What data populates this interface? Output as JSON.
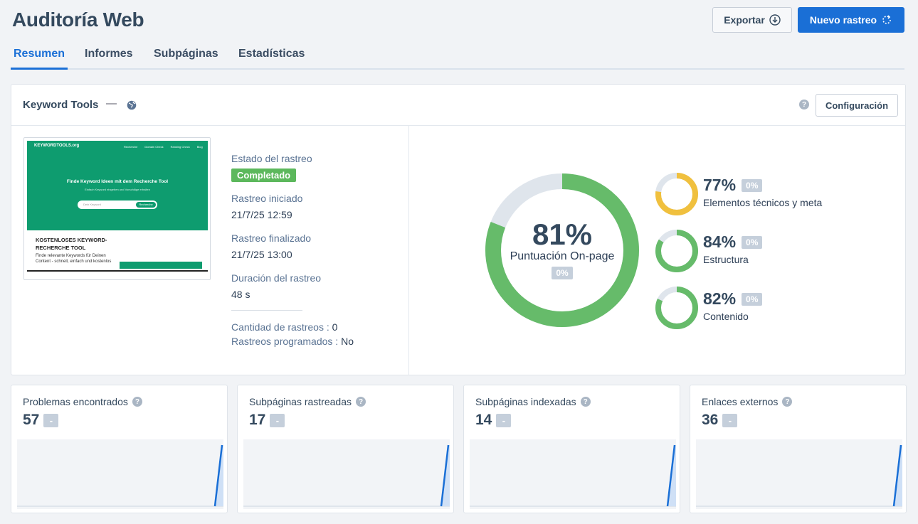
{
  "header": {
    "title": "Auditoría Web",
    "export_label": "Exportar",
    "new_crawl_label": "Nuevo rastreo"
  },
  "tabs": [
    {
      "label": "Resumen",
      "active": true
    },
    {
      "label": "Informes",
      "active": false
    },
    {
      "label": "Subpáginas",
      "active": false
    },
    {
      "label": "Estadísticas",
      "active": false
    }
  ],
  "project": {
    "name": "Keyword Tools",
    "separator": "—",
    "config_label": "Configuración"
  },
  "thumbnail": {
    "logo": "KEYWORDTOOLS.org",
    "nav": [
      "Recherche",
      "Domain Check",
      "Ranking Check",
      "Blog"
    ],
    "hero_title": "Finde Keyword Ideen mit dem Recherche Tool",
    "hero_sub": "Einfach Keyword eingeben und Vorschläge erhalten",
    "search_placeholder": "Dein Keyword",
    "search_button": "Recherche",
    "section_title": "KOSTENLOSES KEYWORD-RECHERCHE TOOL",
    "section_text": "Finde relevante Keywords für Deinen Content - schnell, einfach und kostenlos"
  },
  "crawl": {
    "status_label": "Estado del rastreo",
    "status_value": "Completado",
    "started_label": "Rastreo iniciado",
    "started_value": "21/7/25 12:59",
    "finished_label": "Rastreo finalizado",
    "finished_value": "21/7/25 13:00",
    "duration_label": "Duración del rastreo",
    "duration_value": "48 s",
    "count_label": "Cantidad de rastreos :",
    "count_value": "0",
    "scheduled_label": "Rastreos programados :",
    "scheduled_value": "No"
  },
  "scores": {
    "main": {
      "value": 81,
      "value_text": "81%",
      "label": "Puntuación On-page",
      "change": "0%",
      "color": "#66bb6a"
    },
    "subs": [
      {
        "value": 77,
        "value_text": "77%",
        "label": "Elementos técnicos y meta",
        "change": "0%",
        "color": "#f0c03e"
      },
      {
        "value": 84,
        "value_text": "84%",
        "label": "Estructura",
        "change": "0%",
        "color": "#66bb6a"
      },
      {
        "value": 82,
        "value_text": "82%",
        "label": "Contenido",
        "change": "0%",
        "color": "#66bb6a"
      }
    ],
    "track_color": "#dfe5ec"
  },
  "stats": [
    {
      "title": "Problemas encontrados",
      "value": "57",
      "change": "-"
    },
    {
      "title": "Subpáginas rastreadas",
      "value": "17",
      "change": "-"
    },
    {
      "title": "Subpáginas indexadas",
      "value": "14",
      "change": "-"
    },
    {
      "title": "Enlaces externos",
      "value": "36",
      "change": "-"
    }
  ],
  "colors": {
    "accent": "#1a6fd6",
    "success": "#5cb85c",
    "spark_line": "#1a6fd6"
  }
}
